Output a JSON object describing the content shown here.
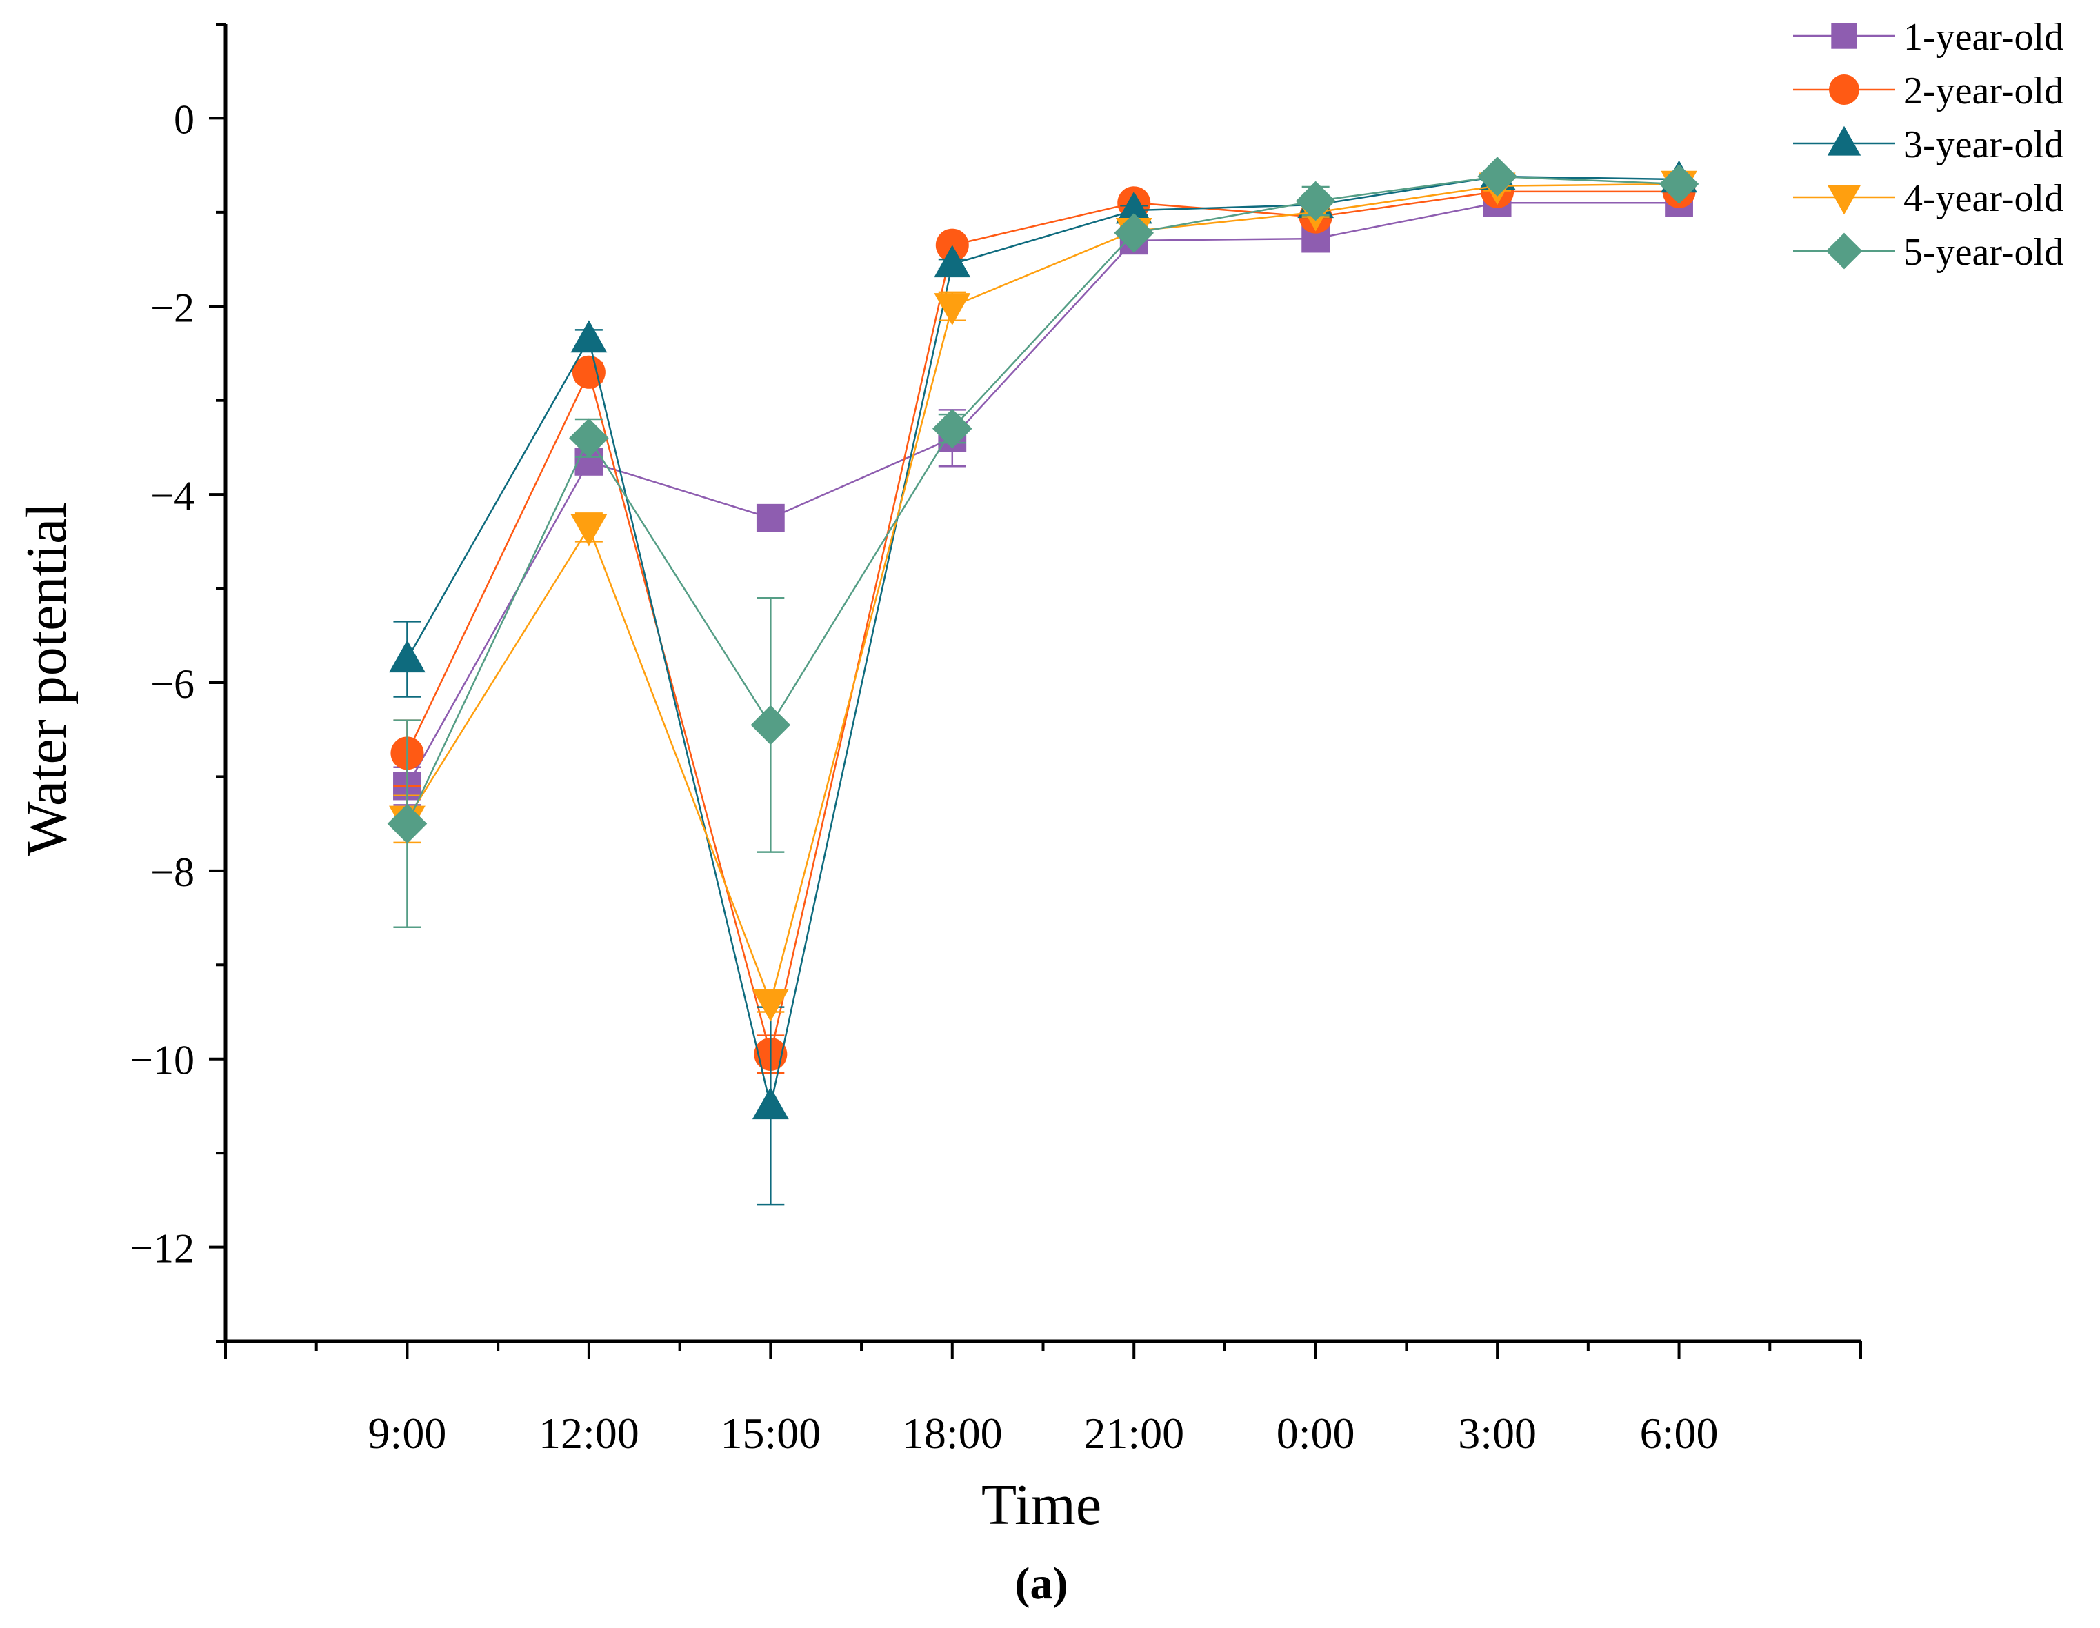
{
  "chart_data": {
    "type": "line",
    "title": "",
    "panel_label": "(a)",
    "xlabel": "Time",
    "ylabel": "Water potential",
    "categories": [
      "9:00",
      "12:00",
      "15:00",
      "18:00",
      "21:00",
      "0:00",
      "3:00",
      "6:00"
    ],
    "x_range": [
      0,
      9
    ],
    "ylim": [
      -13,
      1
    ],
    "y_ticks": [
      0,
      -2,
      -4,
      -6,
      -8,
      -10,
      -12
    ],
    "y_tick_labels": [
      "0",
      "−2",
      "−4",
      "−6",
      "−8",
      "−10",
      "−12"
    ],
    "grid": false,
    "legend_position": "top-right",
    "series": [
      {
        "name": "1-year-old",
        "marker": "square",
        "color": "#8E5DB0",
        "values": [
          -7.1,
          -3.65,
          -4.25,
          -3.4,
          -1.3,
          -1.28,
          -0.9,
          -0.9
        ],
        "errors": [
          0.2,
          0.1,
          0.05,
          0.3,
          0.05,
          0.05,
          0.05,
          0.05
        ]
      },
      {
        "name": "2-year-old",
        "marker": "circle",
        "color": "#FF5A14",
        "values": [
          -6.75,
          -2.7,
          -9.95,
          -1.35,
          -0.9,
          -1.05,
          -0.78,
          -0.78
        ],
        "errors": [
          0.35,
          0.1,
          0.2,
          0.05,
          0.05,
          0.05,
          0.05,
          0.05
        ]
      },
      {
        "name": "3-year-old",
        "marker": "triangle-up",
        "color": "#0E6B7E",
        "values": [
          -5.75,
          -2.35,
          -10.5,
          -1.55,
          -0.98,
          -0.92,
          -0.62,
          -0.65
        ],
        "errors": [
          0.4,
          0.1,
          1.05,
          0.05,
          0.05,
          0.05,
          0.05,
          0.05
        ]
      },
      {
        "name": "4-year-old",
        "marker": "triangle-down",
        "color": "#FF9F0F",
        "values": [
          -7.45,
          -4.35,
          -9.4,
          -2.0,
          -1.2,
          -1.0,
          -0.72,
          -0.7
        ],
        "errors": [
          0.25,
          0.15,
          0.1,
          0.15,
          0.05,
          0.05,
          0.05,
          0.05
        ]
      },
      {
        "name": "5-year-old",
        "marker": "diamond",
        "color": "#559E86",
        "values": [
          -7.5,
          -3.4,
          -6.45,
          -3.3,
          -1.22,
          -0.88,
          -0.62,
          -0.7
        ],
        "errors": [
          1.1,
          0.2,
          1.35,
          0.15,
          0.05,
          0.15,
          0.05,
          0.05
        ]
      }
    ]
  }
}
